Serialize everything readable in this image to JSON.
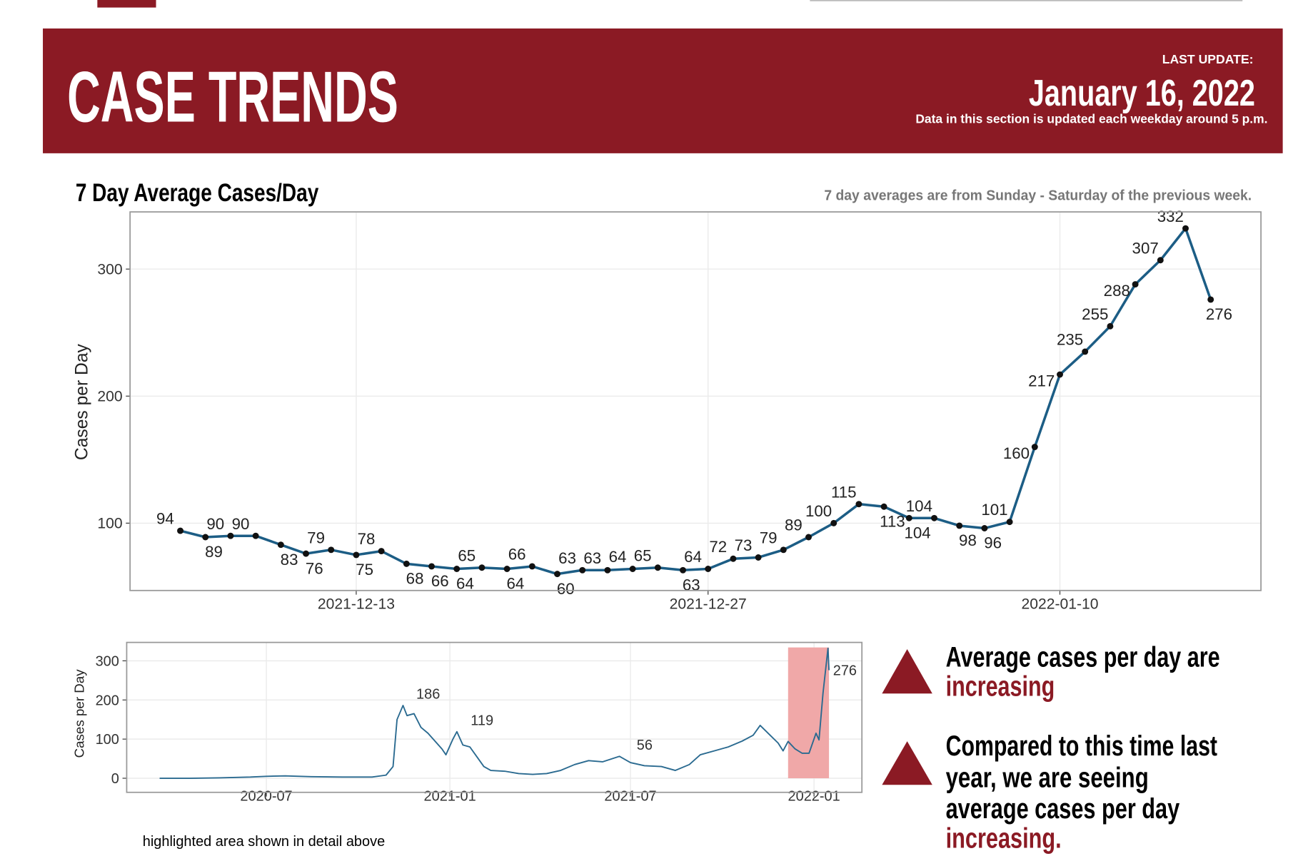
{
  "header": {
    "title": "CASE TRENDS",
    "last_update_label": "LAST UPDATE:",
    "last_update_date": "January 16, 2022",
    "update_note": "Data in this section is updated each weekday around 5 p.m."
  },
  "section_title": "7 Day Average Cases/Day",
  "section_note": "7 day averages are from Sunday - Saturday of the previous week.",
  "caption": "highlighted area shown in detail above",
  "trends": [
    {
      "lines": [
        "Average cases per day are"
      ],
      "emphasis": "increasing"
    },
    {
      "lines": [
        "Compared to this time last",
        "year, we are seeing",
        "average cases per day"
      ],
      "emphasis": "increasing."
    }
  ],
  "chart_data": [
    {
      "type": "line",
      "y_label": "Cases per Day",
      "x": [
        "2021-12-06",
        "2021-12-07",
        "2021-12-08",
        "2021-12-09",
        "2021-12-10",
        "2021-12-11",
        "2021-12-12",
        "2021-12-13",
        "2021-12-14",
        "2021-12-15",
        "2021-12-16",
        "2021-12-17",
        "2021-12-18",
        "2021-12-19",
        "2021-12-20",
        "2021-12-21",
        "2021-12-22",
        "2021-12-23",
        "2021-12-24",
        "2021-12-25",
        "2021-12-26",
        "2021-12-27",
        "2021-12-28",
        "2021-12-29",
        "2021-12-30",
        "2021-12-31",
        "2022-01-01",
        "2022-01-02",
        "2022-01-03",
        "2022-01-04",
        "2022-01-05",
        "2022-01-06",
        "2022-01-07",
        "2022-01-08",
        "2022-01-09",
        "2022-01-10",
        "2022-01-11",
        "2022-01-12",
        "2022-01-13",
        "2022-01-14",
        "2022-01-15",
        "2022-01-16"
      ],
      "values": [
        94,
        89,
        90,
        90,
        83,
        76,
        79,
        75,
        78,
        68,
        66,
        64,
        65,
        64,
        66,
        60,
        63,
        63,
        64,
        65,
        63,
        64,
        72,
        73,
        79,
        89,
        100,
        115,
        113,
        104,
        104,
        98,
        96,
        101,
        160,
        217,
        235,
        255,
        288,
        307,
        332,
        276
      ],
      "color": "#1c5d85",
      "marker_color": "#111111",
      "data_labels": true,
      "xlim": [
        "2021-12-04",
        "2022-01-18"
      ],
      "xticks": [
        "2021-12-13",
        "2021-12-27",
        "2022-01-10"
      ],
      "ylim": [
        47,
        345
      ],
      "yticks": [
        100,
        200,
        300
      ],
      "grid": true
    },
    {
      "type": "line",
      "y_label": "Cases per Day",
      "x": [
        "2020-03-16",
        "2020-04-15",
        "2020-05-15",
        "2020-06-15",
        "2020-07-01",
        "2020-07-20",
        "2020-08-15",
        "2020-09-15",
        "2020-10-15",
        "2020-10-29",
        "2020-11-05",
        "2020-11-09",
        "2020-11-15",
        "2020-11-19",
        "2020-11-26",
        "2020-12-03",
        "2020-12-10",
        "2020-12-17",
        "2020-12-24",
        "2020-12-28",
        "2021-01-04",
        "2021-01-08",
        "2021-01-14",
        "2021-01-21",
        "2021-01-28",
        "2021-02-04",
        "2021-02-11",
        "2021-02-25",
        "2021-03-11",
        "2021-03-25",
        "2021-04-08",
        "2021-04-22",
        "2021-05-06",
        "2021-05-20",
        "2021-06-03",
        "2021-06-20",
        "2021-07-01",
        "2021-07-15",
        "2021-08-01",
        "2021-08-15",
        "2021-08-29",
        "2021-09-09",
        "2021-09-23",
        "2021-10-07",
        "2021-10-21",
        "2021-11-01",
        "2021-11-08",
        "2021-11-18",
        "2021-11-26",
        "2021-12-01",
        "2021-12-06",
        "2021-12-13",
        "2021-12-20",
        "2021-12-27",
        "2022-01-03",
        "2022-01-06",
        "2022-01-10",
        "2022-01-15",
        "2022-01-16"
      ],
      "values": [
        0,
        0,
        1,
        3,
        5,
        6,
        4,
        3,
        3,
        8,
        30,
        150,
        186,
        160,
        165,
        130,
        115,
        95,
        75,
        60,
        100,
        119,
        85,
        80,
        55,
        30,
        20,
        18,
        12,
        10,
        12,
        20,
        35,
        45,
        42,
        56,
        40,
        32,
        30,
        20,
        35,
        60,
        70,
        80,
        95,
        110,
        135,
        110,
        90,
        70,
        94,
        75,
        64,
        64,
        115,
        98,
        217,
        332,
        276
      ],
      "color": "#2a6a90",
      "annotations": [
        {
          "x": "2020-11-15",
          "value": 186
        },
        {
          "x": "2021-01-08",
          "value": 119
        },
        {
          "x": "2021-06-20",
          "value": 56
        },
        {
          "x": "2022-01-16",
          "value": 276
        }
      ],
      "highlight": {
        "start": "2021-12-06",
        "end": "2022-01-16",
        "color": "#f0a8a8"
      },
      "xlim": [
        "2020-02-12",
        "2022-02-18"
      ],
      "xticks": [
        "2020-07",
        "2021-01",
        "2021-07",
        "2022-01"
      ],
      "ylim": [
        -36,
        347
      ],
      "yticks": [
        0,
        100,
        200,
        300
      ],
      "grid": true
    }
  ]
}
